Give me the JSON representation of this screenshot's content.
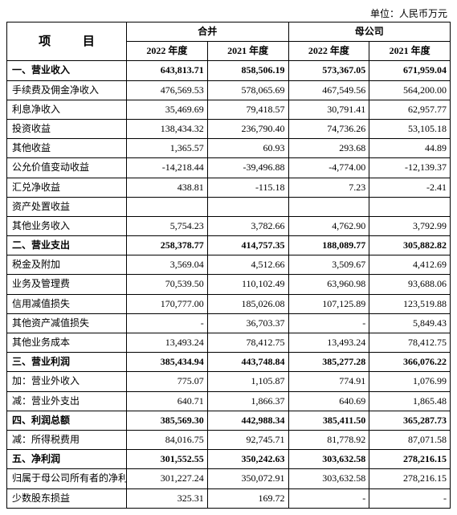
{
  "unit_text": "单位：人民币万元",
  "headers": {
    "project": "项 目",
    "consolidated": "合并",
    "parent": "母公司",
    "y2022": "2022 年度",
    "y2021": "2021 年度"
  },
  "rows": [
    {
      "bold": true,
      "label": "一、营业收入",
      "c1": "643,813.71",
      "c2": "858,506.19",
      "c3": "573,367.05",
      "c4": "671,959.04"
    },
    {
      "bold": false,
      "label": "手续费及佣金净收入",
      "c1": "476,569.53",
      "c2": "578,065.69",
      "c3": "467,549.56",
      "c4": "564,200.00"
    },
    {
      "bold": false,
      "label": "利息净收入",
      "c1": "35,469.69",
      "c2": "79,418.57",
      "c3": "30,791.41",
      "c4": "62,957.77"
    },
    {
      "bold": false,
      "label": "投资收益",
      "c1": "138,434.32",
      "c2": "236,790.40",
      "c3": "74,736.26",
      "c4": "53,105.18"
    },
    {
      "bold": false,
      "label": "其他收益",
      "c1": "1,365.57",
      "c2": "60.93",
      "c3": "293.68",
      "c4": "44.89"
    },
    {
      "bold": false,
      "label": "公允价值变动收益",
      "c1": "-14,218.44",
      "c2": "-39,496.88",
      "c3": "-4,774.00",
      "c4": "-12,139.37"
    },
    {
      "bold": false,
      "label": "汇兑净收益",
      "c1": "438.81",
      "c2": "-115.18",
      "c3": "7.23",
      "c4": "-2.41"
    },
    {
      "bold": false,
      "label": "资产处置收益",
      "c1": "",
      "c2": "",
      "c3": "",
      "c4": ""
    },
    {
      "bold": false,
      "label": "其他业务收入",
      "c1": "5,754.23",
      "c2": "3,782.66",
      "c3": "4,762.90",
      "c4": "3,792.99"
    },
    {
      "bold": true,
      "label": "二、营业支出",
      "c1": "258,378.77",
      "c2": "414,757.35",
      "c3": "188,089.77",
      "c4": "305,882.82"
    },
    {
      "bold": false,
      "label": "税金及附加",
      "c1": "3,569.04",
      "c2": "4,512.66",
      "c3": "3,509.67",
      "c4": "4,412.69"
    },
    {
      "bold": false,
      "label": "业务及管理费",
      "c1": "70,539.50",
      "c2": "110,102.49",
      "c3": "63,960.98",
      "c4": "93,688.06"
    },
    {
      "bold": false,
      "label": "信用减值损失",
      "c1": "170,777.00",
      "c2": "185,026.08",
      "c3": "107,125.89",
      "c4": "123,519.88"
    },
    {
      "bold": false,
      "label": "其他资产减值损失",
      "c1": "-",
      "c2": "36,703.37",
      "c3": "-",
      "c4": "5,849.43"
    },
    {
      "bold": false,
      "label": "其他业务成本",
      "c1": "13,493.24",
      "c2": "78,412.75",
      "c3": "13,493.24",
      "c4": "78,412.75"
    },
    {
      "bold": true,
      "label": "三、营业利润",
      "c1": "385,434.94",
      "c2": "443,748.84",
      "c3": "385,277.28",
      "c4": "366,076.22"
    },
    {
      "bold": false,
      "label": "加：营业外收入",
      "c1": "775.07",
      "c2": "1,105.87",
      "c3": "774.91",
      "c4": "1,076.99"
    },
    {
      "bold": false,
      "label": "减：营业外支出",
      "c1": "640.71",
      "c2": "1,866.37",
      "c3": "640.69",
      "c4": "1,865.48"
    },
    {
      "bold": true,
      "label": "四、利润总额",
      "c1": "385,569.30",
      "c2": "442,988.34",
      "c3": "385,411.50",
      "c4": "365,287.73"
    },
    {
      "bold": false,
      "label": "减：所得税费用",
      "c1": "84,016.75",
      "c2": "92,745.71",
      "c3": "81,778.92",
      "c4": "87,071.58"
    },
    {
      "bold": true,
      "label": "五、净利润",
      "c1": "301,552.55",
      "c2": "350,242.63",
      "c3": "303,632.58",
      "c4": "278,216.15"
    },
    {
      "bold": false,
      "label": "归属于母公司所有者的净利润",
      "c1": "301,227.24",
      "c2": "350,072.91",
      "c3": "303,632.58",
      "c4": "278,216.15"
    },
    {
      "bold": false,
      "label": "少数股东损益",
      "c1": "325.31",
      "c2": "169.72",
      "c3": "-",
      "c4": "-"
    }
  ],
  "style": {
    "border_color": "#000000",
    "background": "#ffffff",
    "font_family": "SimSun",
    "header_fontsize": 12,
    "cell_fontsize": 12,
    "project_header_fontsize": 15
  }
}
